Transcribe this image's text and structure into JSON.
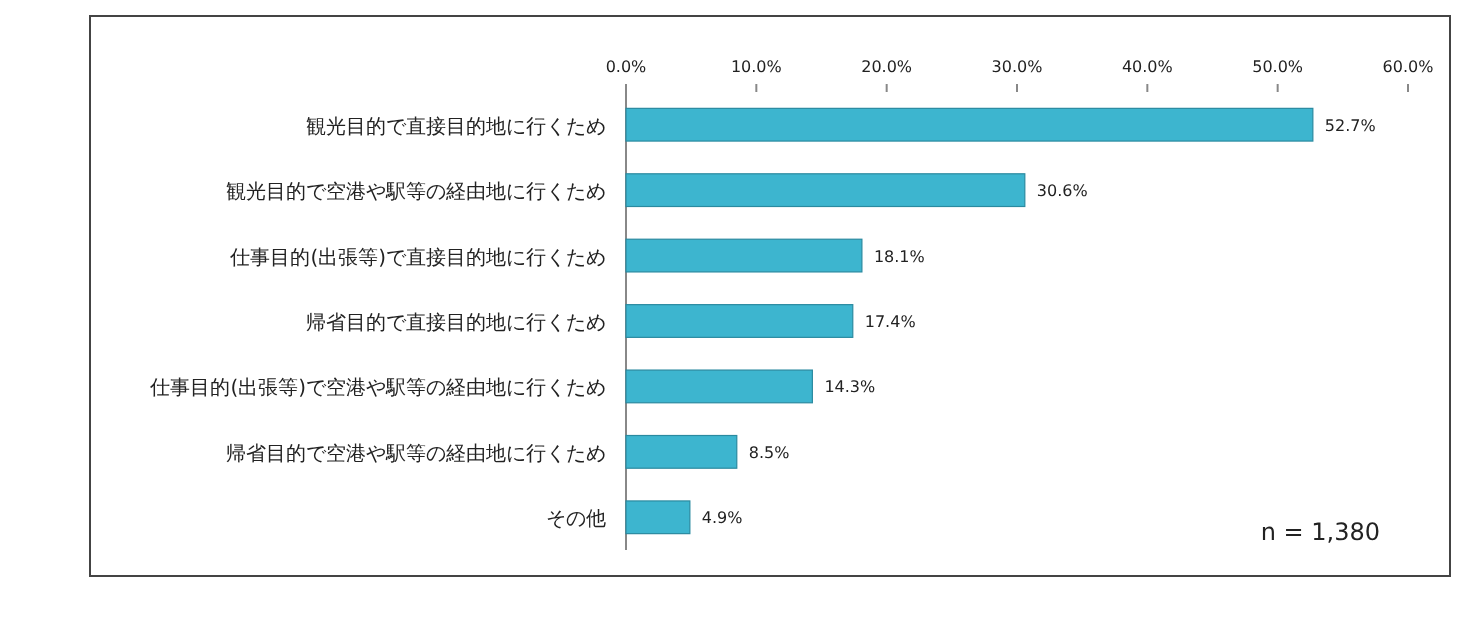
{
  "chart_data": {
    "type": "bar",
    "orientation": "horizontal",
    "categories": [
      "観光目的で直接目的地に行くため",
      "観光目的で空港や駅等の経由地に行くため",
      "仕事目的(出張等)で直接目的地に行くため",
      "帰省目的で直接目的地に行くため",
      "仕事目的(出張等)で空港や駅等の経由地に行くため",
      "帰省目的で空港や駅等の経由地に行くため",
      "その他"
    ],
    "values": [
      52.7,
      30.6,
      18.1,
      17.4,
      14.3,
      8.5,
      4.9
    ],
    "value_labels": [
      "52.7%",
      "30.6%",
      "18.1%",
      "17.4%",
      "14.3%",
      "8.5%",
      "4.9%"
    ],
    "color": "#3db5cf",
    "xlim": [
      0,
      60
    ],
    "xticks": [
      {
        "value": 0,
        "label": "0.0%"
      },
      {
        "value": 10,
        "label": "10.0%"
      },
      {
        "value": 20,
        "label": "20.0%"
      },
      {
        "value": 30,
        "label": "30.0%"
      },
      {
        "value": 40,
        "label": "40.0%"
      },
      {
        "value": 50,
        "label": "50.0%"
      },
      {
        "value": 60,
        "label": "60.0%"
      }
    ],
    "annotations": [
      "n = 1,380"
    ]
  }
}
